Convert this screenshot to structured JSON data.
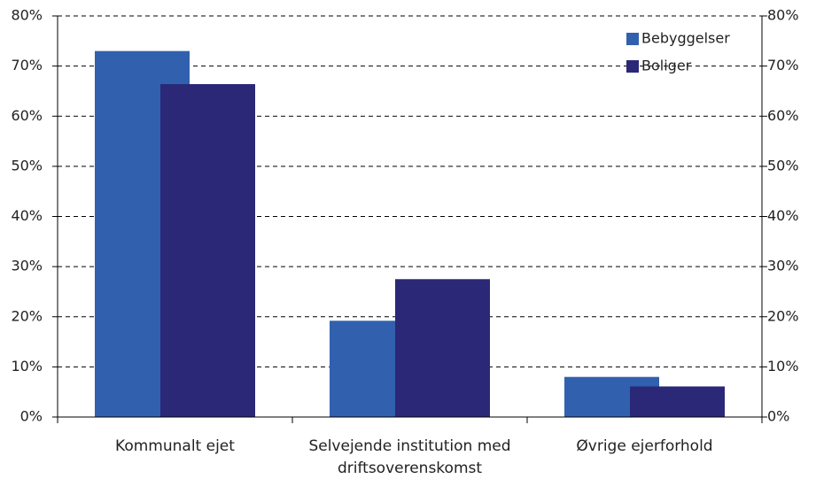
{
  "chart_data": {
    "type": "bar",
    "categories": [
      "Kommunalt ejet",
      "Selvejende institution med driftsoverenskomst",
      "Øvrige ejerforhold"
    ],
    "series": [
      {
        "name": "Bebyggelser",
        "color": "#3161ae",
        "values": [
          73,
          19.2,
          8
        ]
      },
      {
        "name": "Boliger",
        "color": "#2b2877",
        "values": [
          66.4,
          27.5,
          6.1
        ]
      }
    ],
    "ylim": [
      0,
      80
    ],
    "yticks": [
      {
        "value": 0,
        "label": "0%"
      },
      {
        "value": 10,
        "label": "10%"
      },
      {
        "value": 20,
        "label": "20%"
      },
      {
        "value": 30,
        "label": "30%"
      },
      {
        "value": 40,
        "label": "40%"
      },
      {
        "value": 50,
        "label": "50%"
      },
      {
        "value": 60,
        "label": "60%"
      },
      {
        "value": 70,
        "label": "70%"
      },
      {
        "value": 80,
        "label": "80%"
      }
    ],
    "y2lim": [
      0,
      80
    ],
    "y2ticks": [
      {
        "value": 0,
        "label": "0%"
      },
      {
        "value": 10,
        "label": "10%"
      },
      {
        "value": 20,
        "label": "20%"
      },
      {
        "value": 30,
        "label": "30%"
      },
      {
        "value": 40,
        "label": "40%"
      },
      {
        "value": 50,
        "label": "50%"
      },
      {
        "value": 60,
        "label": "60%"
      },
      {
        "value": 70,
        "label": "70%"
      },
      {
        "value": 80,
        "label": "80%"
      }
    ],
    "grid": true,
    "legend": "top-right"
  }
}
